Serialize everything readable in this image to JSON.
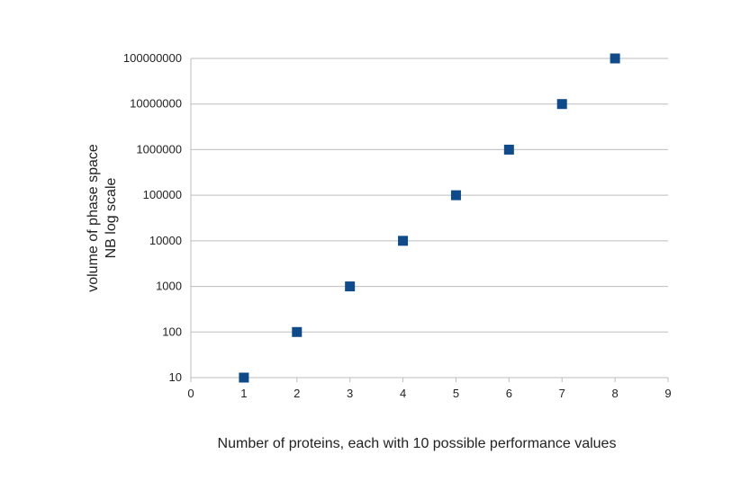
{
  "chart_data": {
    "type": "scatter",
    "title": "",
    "xlabel": "Number of proteins, each with 10 possible performance values",
    "ylabel_lines": [
      "volume of phase space",
      "NB log scale"
    ],
    "xlim": [
      0,
      9
    ],
    "x_ticks": [
      0,
      1,
      2,
      3,
      4,
      5,
      6,
      7,
      8,
      9
    ],
    "x_tick_labels": [
      "0",
      "1",
      "2",
      "3",
      "4",
      "5",
      "6",
      "7",
      "8",
      "9"
    ],
    "ylim": [
      10,
      100000000
    ],
    "y_scale": "log",
    "y_ticks": [
      10,
      100,
      1000,
      10000,
      100000,
      1000000,
      10000000,
      100000000
    ],
    "y_tick_labels": [
      "10",
      "100",
      "1000",
      "10000",
      "100000",
      "1000000",
      "10000000",
      "100000000"
    ],
    "grid": "horizontal",
    "legend": "none",
    "marker": "square",
    "marker_color": "#0f4a8a",
    "series": [
      {
        "x": [
          1,
          2,
          3,
          4,
          5,
          6,
          7,
          8
        ],
        "y": [
          10,
          100,
          1000,
          10000,
          100000,
          1000000,
          10000000,
          100000000
        ]
      }
    ]
  }
}
